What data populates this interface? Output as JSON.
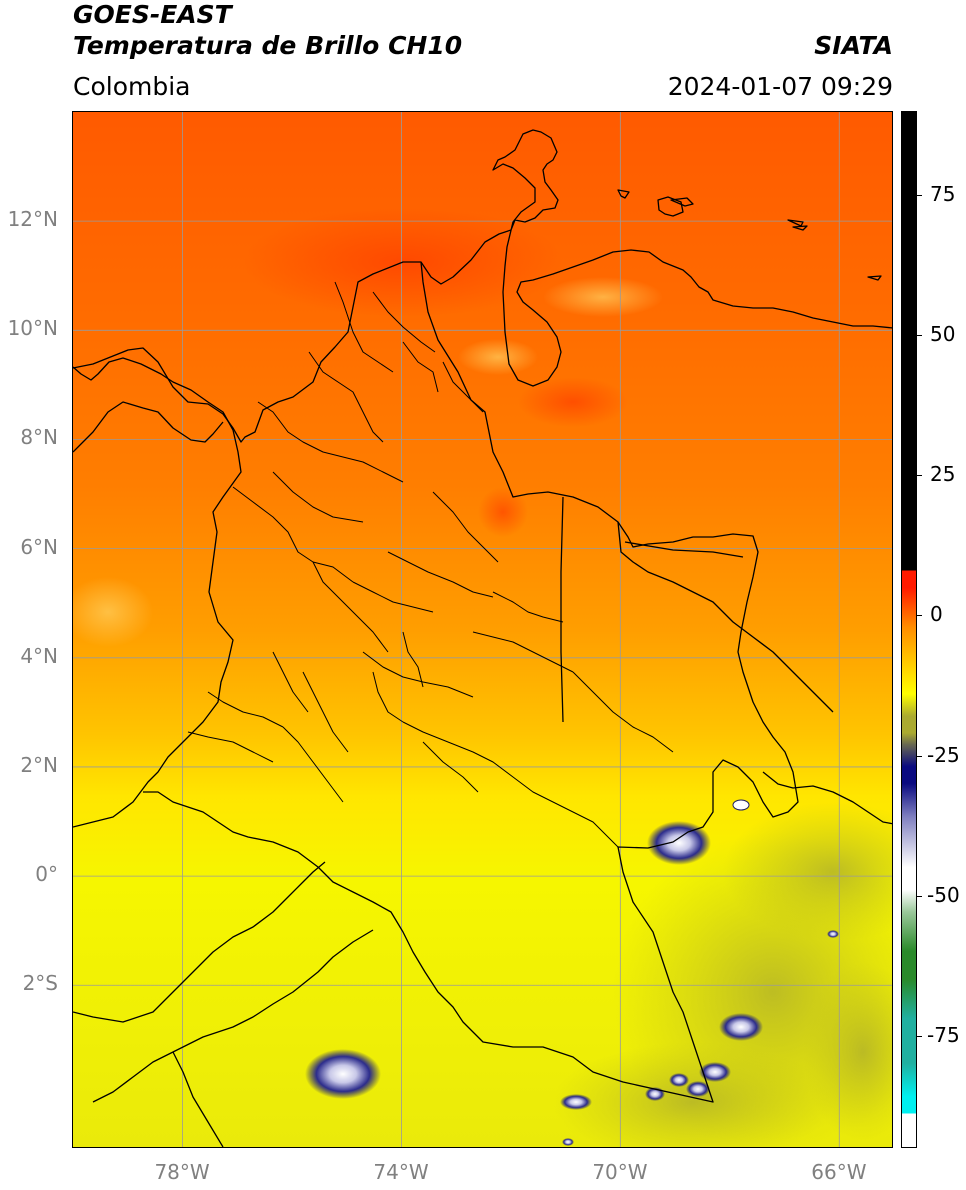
{
  "header": {
    "title_line1": "GOES-EAST",
    "title_line2": "Temperatura de Brillo CH10",
    "region": "Colombia",
    "source": "SIATA",
    "timestamp": "2024-01-07 09:29"
  },
  "map": {
    "lon_range": [
      -80,
      -65
    ],
    "lat_range": [
      -5,
      14
    ],
    "lat_ticks": [
      {
        "value": 12,
        "label": "12°N"
      },
      {
        "value": 10,
        "label": "10°N"
      },
      {
        "value": 8,
        "label": "8°N"
      },
      {
        "value": 6,
        "label": "6°N"
      },
      {
        "value": 4,
        "label": "4°N"
      },
      {
        "value": 2,
        "label": "2°N"
      },
      {
        "value": 0,
        "label": "0°"
      },
      {
        "value": -2,
        "label": "2°S"
      }
    ],
    "lon_ticks": [
      {
        "value": -78,
        "label": "78°W"
      },
      {
        "value": -74,
        "label": "74°W"
      },
      {
        "value": -70,
        "label": "70°W"
      },
      {
        "value": -66,
        "label": "66°W"
      }
    ],
    "grid": true,
    "gridline_color": "#9a9a9a",
    "coastline_color": "#000000"
  },
  "colorbar": {
    "range": [
      -95,
      90
    ],
    "ticks": [
      {
        "value": 75,
        "label": "75"
      },
      {
        "value": 50,
        "label": "50"
      },
      {
        "value": 25,
        "label": "25"
      },
      {
        "value": 0,
        "label": "0"
      },
      {
        "value": -25,
        "label": "-25"
      },
      {
        "value": -50,
        "label": "-50"
      },
      {
        "value": -75,
        "label": "-75"
      }
    ],
    "colors": {
      "black_above": "#000000",
      "red": "#ff1a00",
      "orange": "#ff8c00",
      "yellow": "#ffff00",
      "olive": "#aaaa30",
      "navy": "#0a0a80",
      "white": "#ffffff",
      "green": "#2a8a2a",
      "teal": "#20b0a0",
      "cyan": "#00f0f0"
    }
  }
}
